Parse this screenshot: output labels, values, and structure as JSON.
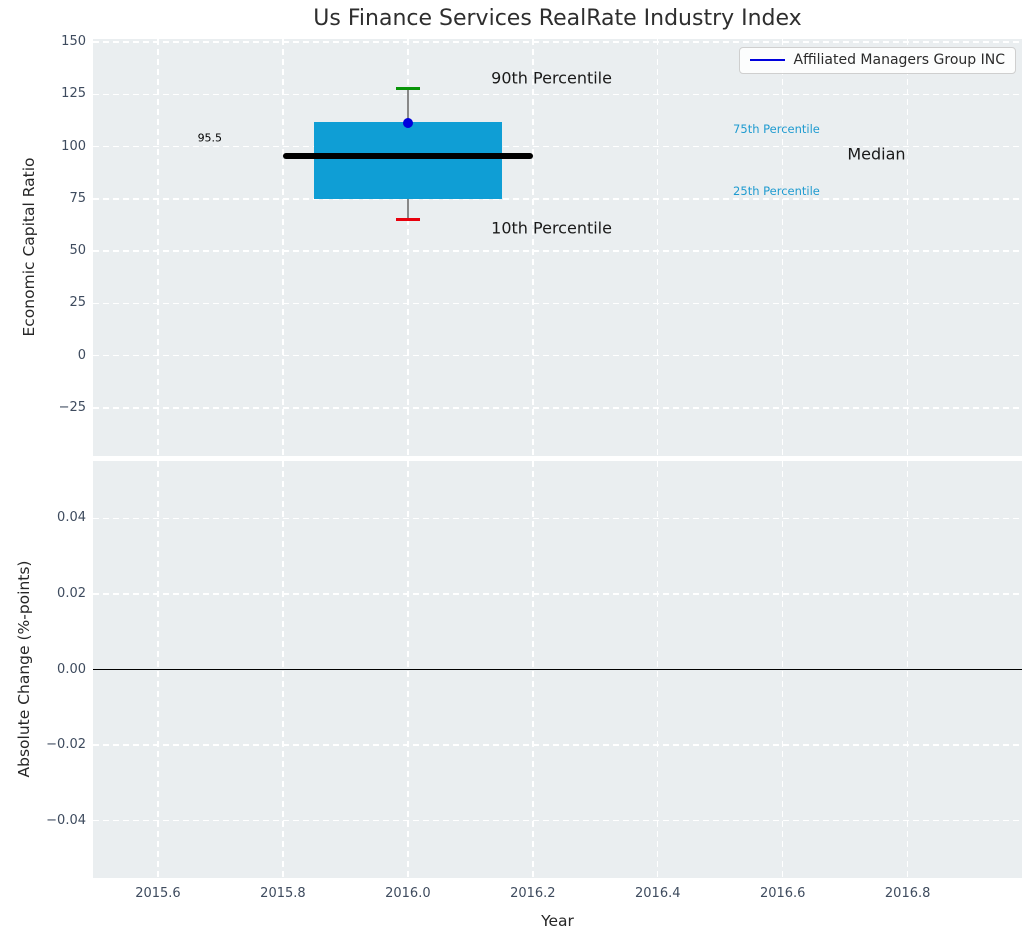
{
  "chart_data": {
    "type": "boxplot",
    "title": "Us Finance Services RealRate Industry Index",
    "legend": {
      "label": "Affiliated Managers Group INC",
      "line_color": "#0000dd",
      "position": "upper right"
    },
    "x": {
      "label": "Year",
      "lim": [
        2015.496,
        2016.983
      ],
      "ticks": [
        2015.6,
        2015.8,
        2016.0,
        2016.2,
        2016.4,
        2016.6,
        2016.8
      ],
      "tick_labels": [
        "2015.6",
        "2015.8",
        "2016.0",
        "2016.2",
        "2016.4",
        "2016.6",
        "2016.8"
      ],
      "grid": true
    },
    "top_panel": {
      "ylabel": "Economic Capital Ratio",
      "ylim": [
        -48,
        151.5
      ],
      "yticks": [
        150,
        125,
        100,
        75,
        50,
        25,
        0,
        -25
      ],
      "ytick_labels": [
        "150",
        "125",
        "100",
        "75",
        "50",
        "25",
        "0",
        "−25"
      ],
      "boxplot": {
        "year": 2016.0,
        "box_halfwidth_years": 0.15,
        "median_halfwidth_years": 0.2,
        "p10": 65,
        "q1": 75,
        "median": 95.5,
        "q3": 112,
        "p90": 128,
        "box_color": "#0f9ed5",
        "median_color": "#000000",
        "p90_cap_color": "#089408",
        "p10_cap_color": "#e8000d",
        "whisker_color": "#888888"
      },
      "series_point": {
        "name": "Affiliated Managers Group INC",
        "year": 2016.0,
        "value": 111.5,
        "color": "#0000dd"
      },
      "annotations": [
        {
          "text": "95.5",
          "x": 2015.683,
          "y": 104.3,
          "size": 11,
          "color": "#000000"
        },
        {
          "text": "90th Percentile",
          "x": 2016.23,
          "y": 133,
          "size": 16,
          "color": "#1a1a1a"
        },
        {
          "text": "10th Percentile",
          "x": 2016.23,
          "y": 61,
          "size": 16,
          "color": "#1a1a1a"
        },
        {
          "text": "75th Percentile",
          "x": 2016.59,
          "y": 108.5,
          "size": 11.5,
          "color": "#1f9bd0"
        },
        {
          "text": "25th Percentile",
          "x": 2016.59,
          "y": 79,
          "size": 11.5,
          "color": "#1f9bd0"
        },
        {
          "text": "Median",
          "x": 2016.75,
          "y": 96.5,
          "size": 16,
          "color": "#1a1a1a"
        }
      ]
    },
    "bottom_panel": {
      "ylabel": "Absolute Change (%-points)",
      "ylim": [
        -0.0552,
        0.0552
      ],
      "yticks": [
        0.04,
        0.02,
        0.0,
        -0.02,
        -0.04
      ],
      "ytick_labels": [
        "0.04",
        "0.02",
        "0.00",
        "−0.02",
        "−0.04"
      ],
      "zero_line": 0.0,
      "zero_line_color": "#000000"
    },
    "style": {
      "plot_bg": "#eaeef0",
      "grid_color": "#ffffff",
      "tick_label_color": "#3e4b5e",
      "text_color": "#262626"
    }
  }
}
